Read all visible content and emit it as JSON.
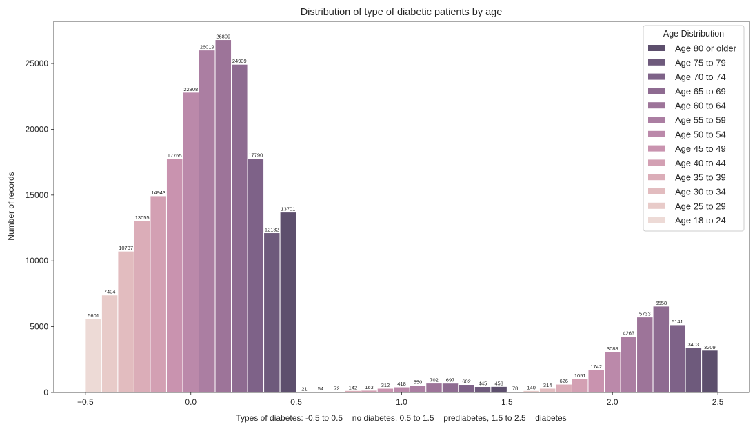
{
  "chart_data": {
    "type": "bar",
    "title": "Distribution of type of diabetic patients by age",
    "xlabel": "Types of diabetes: -0.5 to 0.5 = no diabetes, 0.5 to 1.5 = prediabetes, 1.5 to 2.5 = diabetes",
    "ylabel": "Number of records",
    "xlim": [
      -0.65,
      2.65
    ],
    "ylim": [
      0,
      28200
    ],
    "x_ticks": [
      -0.5,
      0.0,
      0.5,
      1.0,
      1.5,
      2.0,
      2.5
    ],
    "x_tick_labels": [
      "−0.5",
      "0.0",
      "0.5",
      "1.0",
      "1.5",
      "2.0",
      "2.5"
    ],
    "y_ticks": [
      0,
      5000,
      10000,
      15000,
      20000,
      25000
    ],
    "y_tick_labels": [
      "0",
      "5000",
      "10000",
      "15000",
      "20000",
      "25000"
    ],
    "grid": false,
    "legend": {
      "title": "Age Distribution",
      "position": "top-right"
    },
    "groups": [
      -0.5,
      0.5,
      1.5
    ],
    "group_width": 1.0,
    "series": [
      {
        "name": "Age 18 to 24",
        "color": "#eddad6",
        "values": [
          5601,
          21,
          78
        ]
      },
      {
        "name": "Age 25 to 29",
        "color": "#e8cbc9",
        "values": [
          7404,
          54,
          140
        ]
      },
      {
        "name": "Age 30 to 34",
        "color": "#e2bcbf",
        "values": [
          10737,
          72,
          314
        ]
      },
      {
        "name": "Age 35 to 39",
        "color": "#dbadb8",
        "values": [
          13055,
          142,
          626
        ]
      },
      {
        "name": "Age 40 to 44",
        "color": "#d3a0b3",
        "values": [
          14943,
          163,
          1051
        ]
      },
      {
        "name": "Age 45 to 49",
        "color": "#c993af",
        "values": [
          17765,
          312,
          1742
        ]
      },
      {
        "name": "Age 50 to 54",
        "color": "#bb89aa",
        "values": [
          22808,
          418,
          3088
        ]
      },
      {
        "name": "Age 55 to 59",
        "color": "#ab7ea2",
        "values": [
          26019,
          550,
          4263
        ]
      },
      {
        "name": "Age 60 to 64",
        "color": "#9d7499",
        "values": [
          26809,
          702,
          5733
        ]
      },
      {
        "name": "Age 65 to 69",
        "color": "#8e6b91",
        "values": [
          24939,
          697,
          6558
        ]
      },
      {
        "name": "Age 70 to 74",
        "color": "#7e6288",
        "values": [
          17790,
          602,
          5141
        ]
      },
      {
        "name": "Age 75 to 79",
        "color": "#6e5a7c",
        "values": [
          12132,
          445,
          3403
        ]
      },
      {
        "name": "Age 80 or older",
        "color": "#5d4f6d",
        "values": [
          13701,
          453,
          3209
        ]
      }
    ]
  }
}
